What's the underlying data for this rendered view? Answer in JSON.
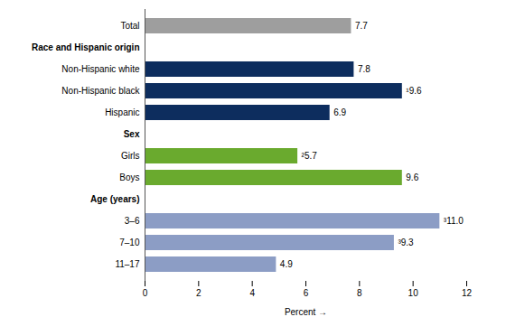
{
  "chart_data": {
    "type": "bar",
    "orientation": "horizontal",
    "categories": [
      "Total",
      "Non-Hispanic white",
      "Non-Hispanic black",
      "Hispanic",
      "Girls",
      "Boys",
      "3–6",
      "7–10",
      "11–17"
    ],
    "values": [
      7.7,
      7.8,
      9.6,
      6.9,
      5.7,
      9.6,
      11.0,
      9.3,
      4.9
    ],
    "value_labels": [
      "7.7",
      "7.8",
      "¹9.6",
      "6.9",
      "²5.7",
      "9.6",
      "³11.0",
      "³9.3",
      "4.9"
    ],
    "data_labels": true,
    "colors": [
      "#9e9e9e",
      "#0d2d5e",
      "#0d2d5e",
      "#0d2d5e",
      "#6aaa2e",
      "#6aaa2e",
      "#8c9dc5",
      "#8c9dc5",
      "#8c9dc5"
    ],
    "annotations": [
      {
        "text": "Race and Hispanic origin",
        "category": "Non-Hispanic white"
      },
      {
        "text": "Sex",
        "category": "Girls"
      },
      {
        "text": "Age (years)",
        "category": "3–6"
      }
    ],
    "xlabel": "Percent",
    "xlim": [
      0,
      12
    ],
    "xticks": [
      0,
      2,
      4,
      6,
      8,
      10,
      12
    ],
    "grid": false
  }
}
